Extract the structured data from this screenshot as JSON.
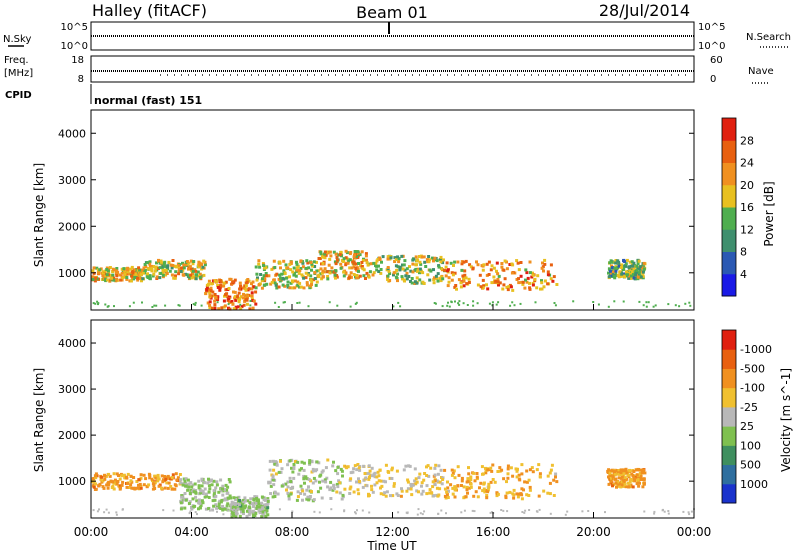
{
  "header": {
    "station": "Halley (fitACF)",
    "beam": "Beam 01",
    "date": "28/Jul/2014"
  },
  "summary_panels": {
    "nsky": {
      "label": "N.Sky",
      "ticks": [
        "10^5",
        "10^0"
      ]
    },
    "nsearch": {
      "label": "N.Search",
      "ticks": [
        "10^5",
        "10^0"
      ]
    },
    "freq": {
      "label_line1": "Freq.",
      "label_line2": "[MHz]",
      "ticks": [
        "18",
        "8"
      ]
    },
    "nave": {
      "label": "Nave",
      "ticks": [
        "60",
        "0"
      ]
    },
    "cpid": {
      "label": "CPID",
      "value": "normal (fast) 151"
    }
  },
  "axes": {
    "ylabel": "Slant Range [km]",
    "xlabel": "Time UT",
    "y_ticks": [
      "1000",
      "2000",
      "3000",
      "4000"
    ],
    "x_ticks": [
      "00:00",
      "04:00",
      "08:00",
      "12:00",
      "16:00",
      "20:00",
      "00:00"
    ]
  },
  "colorbars": {
    "power": {
      "label": "Power [dB]",
      "ticks": [
        "4",
        "8",
        "12",
        "16",
        "20",
        "24",
        "28"
      ],
      "colors": [
        "#1a1ae6",
        "#2b59b3",
        "#3f8f6e",
        "#4fae4f",
        "#e8c020",
        "#f09020",
        "#e86010",
        "#e02010"
      ]
    },
    "velocity": {
      "label": "Velocity [m s^-1]",
      "ticks": [
        "1000",
        "500",
        "100",
        "25",
        "-25",
        "-100",
        "-500",
        "-1000"
      ],
      "colors": [
        "#1a33cc",
        "#2f6f9f",
        "#3f8f5f",
        "#7fc050",
        "#b8b8b8",
        "#f0c030",
        "#f09020",
        "#e86010",
        "#e02010"
      ]
    }
  },
  "chart_data": {
    "type": "heatmap",
    "title": "Halley (fitACF) Beam 01 28/Jul/2014",
    "xlabel": "Time UT",
    "ylabel": "Slant Range [km]",
    "x_unit": "hours UT",
    "xlim": [
      0,
      24
    ],
    "ylim": [
      200,
      4500
    ],
    "panels": [
      {
        "name": "Power",
        "unit": "dB",
        "colorbar_range": [
          0,
          32
        ],
        "scatter_regions": [
          {
            "t_start": 0.0,
            "t_end": 2.0,
            "range_min": 850,
            "range_max": 1150,
            "value": 20
          },
          {
            "t_start": 2.0,
            "t_end": 4.5,
            "range_min": 900,
            "range_max": 1300,
            "value": 18
          },
          {
            "t_start": 4.5,
            "t_end": 6.5,
            "range_min": 250,
            "range_max": 900,
            "value": 24
          },
          {
            "t_start": 6.5,
            "t_end": 9.0,
            "range_min": 700,
            "range_max": 1300,
            "value": 18
          },
          {
            "t_start": 9.0,
            "t_end": 11.0,
            "range_min": 900,
            "range_max": 1500,
            "value": 20
          },
          {
            "t_start": 11.0,
            "t_end": 14.0,
            "range_min": 800,
            "range_max": 1400,
            "value": 16
          },
          {
            "t_start": 14.0,
            "t_end": 18.5,
            "range_min": 650,
            "range_max": 1300,
            "value": 22
          },
          {
            "t_start": 20.5,
            "t_end": 22.0,
            "range_min": 900,
            "range_max": 1300,
            "value": 14
          }
        ]
      },
      {
        "name": "Velocity",
        "unit": "m s^-1",
        "colorbar_range": [
          -1000,
          1000
        ],
        "scatter_regions": [
          {
            "t_start": 0.0,
            "t_end": 3.5,
            "range_min": 850,
            "range_max": 1200,
            "value": -400
          },
          {
            "t_start": 3.5,
            "t_end": 5.5,
            "range_min": 400,
            "range_max": 1100,
            "value": 100
          },
          {
            "t_start": 5.5,
            "t_end": 7.0,
            "range_min": 250,
            "range_max": 700,
            "value": 150
          },
          {
            "t_start": 7.0,
            "t_end": 10.0,
            "range_min": 600,
            "range_max": 1500,
            "value": 50
          },
          {
            "t_start": 10.0,
            "t_end": 14.0,
            "range_min": 700,
            "range_max": 1400,
            "value": -150
          },
          {
            "t_start": 14.0,
            "t_end": 18.5,
            "range_min": 650,
            "range_max": 1400,
            "value": -300
          },
          {
            "t_start": 20.5,
            "t_end": 22.0,
            "range_min": 900,
            "range_max": 1300,
            "value": -400
          }
        ]
      }
    ]
  }
}
